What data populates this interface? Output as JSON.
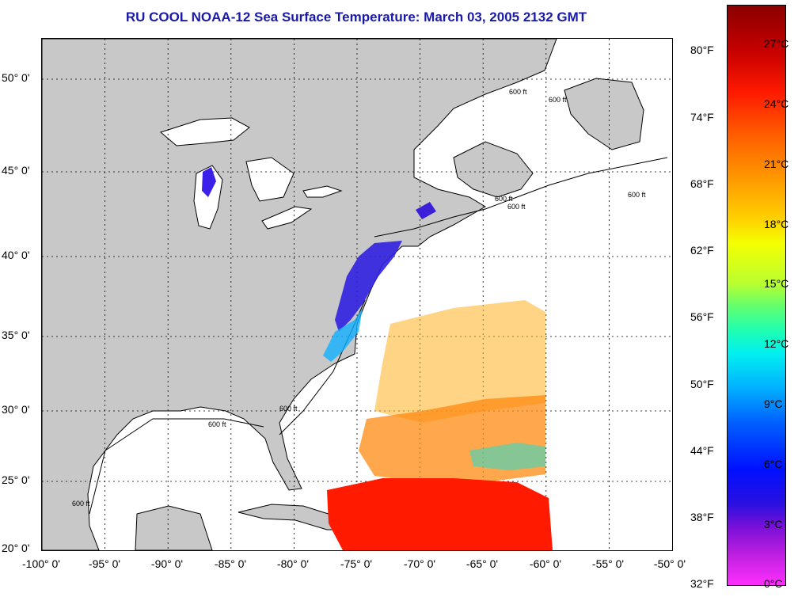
{
  "title": "RU COOL  NOAA-12  Sea Surface Temperature:  March 03, 2005 2132 GMT",
  "map": {
    "projection_extent": {
      "lon_min": -100,
      "lon_max": -50,
      "lat_min": 20,
      "lat_max": 52
    },
    "grid": "dotted",
    "latitude_labels": [
      "50° 0'",
      "45° 0'",
      "40° 0'",
      "35° 0'",
      "30° 0'",
      "25° 0'",
      "20° 0'"
    ],
    "longitude_labels": [
      "-100° 0'",
      "-95° 0'",
      "-90° 0'",
      "-85° 0'",
      "-80° 0'",
      "-75° 0'",
      "-70° 0'",
      "-65° 0'",
      "-60° 0'",
      "-55° 0'",
      "-50° 0'"
    ],
    "isobath_labels": [
      "600 ft",
      "600 ft",
      "600 ft",
      "600 ft",
      "600 ft",
      "600 ft",
      "600 ft",
      "600 ft"
    ],
    "colors": {
      "land": "#c8c8c8",
      "ocean": "#ffffff",
      "grid": "#000000"
    }
  },
  "colorbar": {
    "fahrenheit_labels": [
      "80°F",
      "74°F",
      "68°F",
      "62°F",
      "56°F",
      "50°F",
      "44°F",
      "38°F",
      "32°F"
    ],
    "celsius_labels": [
      "27°C",
      "24°C",
      "21°C",
      "18°C",
      "15°C",
      "12°C",
      "9°C",
      "6°C",
      "3°C",
      "0°C"
    ]
  }
}
